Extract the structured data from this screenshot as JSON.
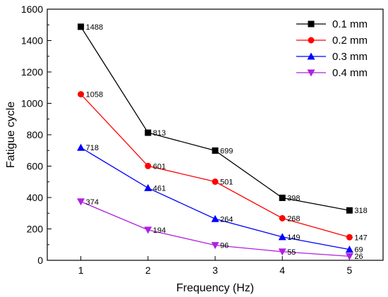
{
  "chart_data": {
    "type": "line",
    "xlabel": "Frequency (Hz)",
    "ylabel": "Fatigue cycle",
    "x": [
      1,
      2,
      3,
      4,
      5
    ],
    "xlim": [
      0.5,
      5.5
    ],
    "ylim": [
      0,
      1600
    ],
    "xticks": [
      "1",
      "2",
      "3",
      "4",
      "5"
    ],
    "yticks": [
      "0",
      "200",
      "400",
      "600",
      "800",
      "1000",
      "1200",
      "1400",
      "1600"
    ],
    "legend_position": "top-right",
    "grid": false,
    "series": [
      {
        "name": "0.1 mm",
        "marker": "square",
        "color": "#000000",
        "values": [
          1488,
          813,
          699,
          398,
          318
        ],
        "labels": [
          "1488",
          "813",
          "699",
          "398",
          "318"
        ]
      },
      {
        "name": "0.2 mm",
        "marker": "circle",
        "color": "#ff0000",
        "values": [
          1058,
          601,
          501,
          268,
          147
        ],
        "labels": [
          "1058",
          "601",
          "501",
          "268",
          "147"
        ]
      },
      {
        "name": "0.3 mm",
        "marker": "triangle-up",
        "color": "#0000ff",
        "values": [
          718,
          461,
          264,
          149,
          69
        ],
        "labels": [
          "718",
          "461",
          "264",
          "149",
          "69"
        ]
      },
      {
        "name": "0.4 mm",
        "marker": "triangle-down",
        "color": "#b020e0",
        "values": [
          374,
          194,
          96,
          55,
          26
        ],
        "labels": [
          "374",
          "194",
          "96",
          "55",
          "26"
        ]
      }
    ]
  }
}
